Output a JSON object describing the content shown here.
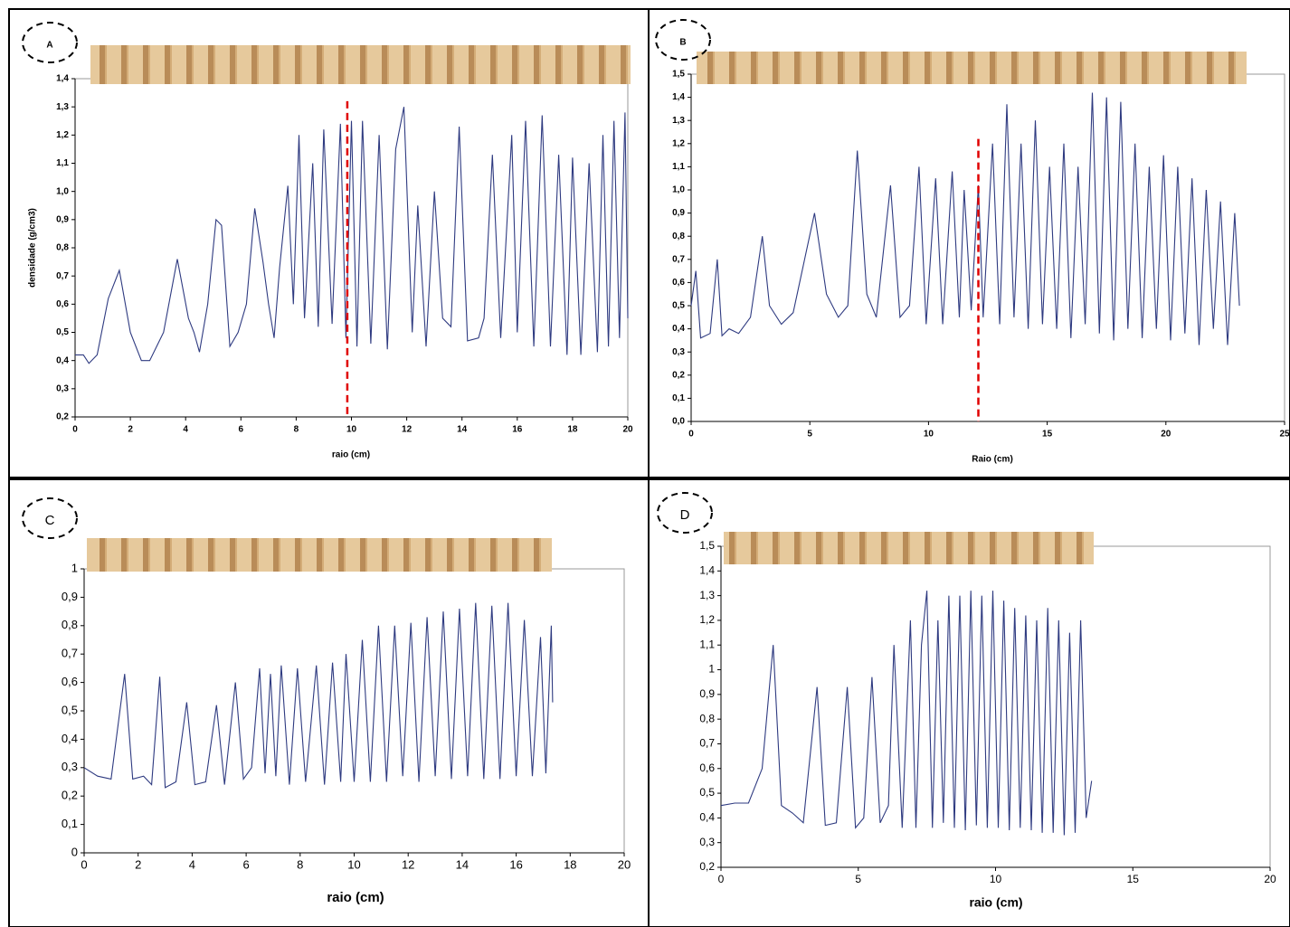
{
  "chart_data": [
    {
      "type": "line",
      "panel_label": "A",
      "xlabel": "raio (cm)",
      "ylabel": "densidade (g/cm3)",
      "color": "#2e3a80",
      "x": [
        0,
        0.3,
        0.5,
        0.8,
        1.2,
        1.6,
        2.0,
        2.4,
        2.7,
        3.2,
        3.7,
        4.1,
        4.3,
        4.5,
        4.8,
        5.1,
        5.3,
        5.6,
        5.9,
        6.2,
        6.5,
        6.8,
        7.0,
        7.2,
        7.4,
        7.7,
        7.9,
        8.1,
        8.3,
        8.6,
        8.8,
        9.0,
        9.3,
        9.6,
        9.8,
        10.0,
        10.2,
        10.4,
        10.7,
        11.0,
        11.3,
        11.6,
        11.9,
        12.2,
        12.4,
        12.7,
        13.0,
        13.3,
        13.6,
        13.9,
        14.2,
        14.6,
        14.8,
        15.1,
        15.4,
        15.8,
        16.0,
        16.3,
        16.6,
        16.9,
        17.2,
        17.5,
        17.8,
        18.0,
        18.3,
        18.6,
        18.9,
        19.1,
        19.3,
        19.5,
        19.7,
        19.9,
        20.0
      ],
      "values": [
        0.42,
        0.42,
        0.39,
        0.42,
        0.62,
        0.72,
        0.5,
        0.4,
        0.4,
        0.5,
        0.76,
        0.55,
        0.5,
        0.43,
        0.6,
        0.9,
        0.88,
        0.45,
        0.5,
        0.6,
        0.94,
        0.75,
        0.6,
        0.48,
        0.73,
        1.02,
        0.6,
        1.2,
        0.55,
        1.1,
        0.52,
        1.22,
        0.53,
        1.24,
        0.48,
        1.25,
        0.45,
        1.25,
        0.46,
        1.2,
        0.44,
        1.15,
        1.3,
        0.5,
        0.95,
        0.45,
        1.0,
        0.55,
        0.52,
        1.23,
        0.47,
        0.48,
        0.55,
        1.13,
        0.48,
        1.2,
        0.5,
        1.25,
        0.45,
        1.27,
        0.45,
        1.13,
        0.42,
        1.12,
        0.42,
        1.1,
        0.43,
        1.2,
        0.45,
        1.25,
        0.48,
        1.28,
        0.55
      ],
      "xlim": [
        0,
        20
      ],
      "ylim": [
        0.2,
        1.4
      ],
      "xticks": [
        0,
        2,
        4,
        6,
        8,
        10,
        12,
        14,
        16,
        18,
        20
      ],
      "yticks": [
        {
          "value": 0.2,
          "label": "0,2"
        },
        {
          "value": 0.3,
          "label": "0,3"
        },
        {
          "value": 0.4,
          "label": "0,4"
        },
        {
          "value": 0.5,
          "label": "0,5"
        },
        {
          "value": 0.6,
          "label": "0,6"
        },
        {
          "value": 0.7,
          "label": "0,7"
        },
        {
          "value": 0.8,
          "label": "0,8"
        },
        {
          "value": 0.9,
          "label": "0,9"
        },
        {
          "value": 1.0,
          "label": "1,0"
        },
        {
          "value": 1.1,
          "label": "1,1"
        },
        {
          "value": 1.2,
          "label": "1,2"
        },
        {
          "value": 1.3,
          "label": "1,3"
        },
        {
          "value": 1.4,
          "label": "1,4"
        }
      ],
      "vline": {
        "x": 9.85,
        "top": 1.32,
        "color": "#e00000"
      }
    },
    {
      "type": "line",
      "panel_label": "B",
      "xlabel": "Raio (cm)",
      "color": "#2e3a80",
      "x": [
        0,
        0.2,
        0.4,
        0.8,
        1.1,
        1.3,
        1.6,
        2.0,
        2.5,
        3.0,
        3.3,
        3.8,
        4.3,
        5.2,
        5.7,
        6.2,
        6.6,
        7.0,
        7.4,
        7.8,
        8.4,
        8.8,
        9.2,
        9.6,
        9.9,
        10.3,
        10.6,
        11.0,
        11.3,
        11.5,
        11.8,
        12.1,
        12.3,
        12.7,
        13.0,
        13.3,
        13.6,
        13.9,
        14.2,
        14.5,
        14.8,
        15.1,
        15.4,
        15.7,
        16.0,
        16.3,
        16.6,
        16.9,
        17.2,
        17.5,
        17.8,
        18.1,
        18.4,
        18.7,
        19.0,
        19.3,
        19.6,
        19.9,
        20.2,
        20.5,
        20.8,
        21.1,
        21.4,
        21.7,
        22.0,
        22.3,
        22.6,
        22.9,
        23.1
      ],
      "values": [
        0.5,
        0.65,
        0.36,
        0.38,
        0.7,
        0.37,
        0.4,
        0.38,
        0.45,
        0.8,
        0.5,
        0.42,
        0.47,
        0.9,
        0.55,
        0.45,
        0.5,
        1.17,
        0.55,
        0.45,
        1.02,
        0.45,
        0.5,
        1.1,
        0.42,
        1.05,
        0.42,
        1.08,
        0.45,
        1.0,
        0.48,
        1.02,
        0.45,
        1.2,
        0.42,
        1.37,
        0.45,
        1.2,
        0.4,
        1.3,
        0.42,
        1.1,
        0.4,
        1.2,
        0.36,
        1.1,
        0.42,
        1.42,
        0.38,
        1.4,
        0.35,
        1.38,
        0.4,
        1.2,
        0.36,
        1.1,
        0.4,
        1.15,
        0.35,
        1.1,
        0.38,
        1.05,
        0.33,
        1.0,
        0.4,
        0.95,
        0.33,
        0.9,
        0.5
      ],
      "xlim": [
        0,
        25
      ],
      "ylim": [
        0,
        1.5
      ],
      "xticks": [
        0,
        5,
        10,
        15,
        20,
        25
      ],
      "yticks": [
        {
          "value": 0,
          "label": "0,0"
        },
        {
          "value": 0.1,
          "label": "0,1"
        },
        {
          "value": 0.2,
          "label": "0,2"
        },
        {
          "value": 0.3,
          "label": "0,3"
        },
        {
          "value": 0.4,
          "label": "0,4"
        },
        {
          "value": 0.5,
          "label": "0,5"
        },
        {
          "value": 0.6,
          "label": "0,6"
        },
        {
          "value": 0.7,
          "label": "0,7"
        },
        {
          "value": 0.8,
          "label": "0,8"
        },
        {
          "value": 0.9,
          "label": "0,9"
        },
        {
          "value": 1.0,
          "label": "1,0"
        },
        {
          "value": 1.1,
          "label": "1,1"
        },
        {
          "value": 1.2,
          "label": "1,2"
        },
        {
          "value": 1.3,
          "label": "1,3"
        },
        {
          "value": 1.4,
          "label": "1,4"
        },
        {
          "value": 1.5,
          "label": "1,5"
        }
      ],
      "vline": {
        "x": 12.1,
        "top": 1.22,
        "color": "#e00000"
      }
    },
    {
      "type": "line",
      "panel_label": "C",
      "xlabel": "raio (cm)",
      "color": "#2e3a80",
      "x": [
        0,
        0.5,
        1.0,
        1.5,
        1.8,
        2.2,
        2.5,
        2.8,
        3.0,
        3.4,
        3.8,
        4.1,
        4.5,
        4.9,
        5.2,
        5.6,
        5.9,
        6.2,
        6.5,
        6.7,
        6.9,
        7.1,
        7.3,
        7.6,
        7.9,
        8.2,
        8.6,
        8.9,
        9.2,
        9.5,
        9.7,
        10.0,
        10.3,
        10.6,
        10.9,
        11.2,
        11.5,
        11.8,
        12.1,
        12.4,
        12.7,
        13.0,
        13.3,
        13.6,
        13.9,
        14.2,
        14.5,
        14.8,
        15.1,
        15.4,
        15.7,
        16.0,
        16.3,
        16.6,
        16.9,
        17.1,
        17.3,
        17.35
      ],
      "values": [
        0.3,
        0.27,
        0.26,
        0.63,
        0.26,
        0.27,
        0.24,
        0.62,
        0.23,
        0.25,
        0.53,
        0.24,
        0.25,
        0.52,
        0.24,
        0.6,
        0.26,
        0.3,
        0.65,
        0.28,
        0.63,
        0.27,
        0.66,
        0.24,
        0.65,
        0.25,
        0.66,
        0.24,
        0.67,
        0.25,
        0.7,
        0.25,
        0.75,
        0.25,
        0.8,
        0.25,
        0.8,
        0.27,
        0.81,
        0.25,
        0.83,
        0.27,
        0.85,
        0.26,
        0.86,
        0.27,
        0.88,
        0.26,
        0.87,
        0.26,
        0.88,
        0.27,
        0.82,
        0.27,
        0.76,
        0.28,
        0.8,
        0.53
      ],
      "xlim": [
        0,
        20
      ],
      "ylim": [
        0,
        1
      ],
      "xticks": [
        0,
        2,
        4,
        6,
        8,
        10,
        12,
        14,
        16,
        18,
        20
      ],
      "yticks": [
        0,
        {
          "value": 0.1,
          "label": "0,1"
        },
        {
          "value": 0.2,
          "label": "0,2"
        },
        {
          "value": 0.3,
          "label": "0,3"
        },
        {
          "value": 0.4,
          "label": "0,4"
        },
        {
          "value": 0.5,
          "label": "0,5"
        },
        {
          "value": 0.6,
          "label": "0,6"
        },
        {
          "value": 0.7,
          "label": "0,7"
        },
        {
          "value": 0.8,
          "label": "0,8"
        },
        {
          "value": 0.9,
          "label": "0,9"
        },
        1
      ]
    },
    {
      "type": "line",
      "panel_label": "D",
      "xlabel": "raio (cm)",
      "color": "#2e3a80",
      "x": [
        0,
        0.5,
        1.0,
        1.5,
        1.9,
        2.2,
        2.6,
        3.0,
        3.5,
        3.8,
        4.2,
        4.6,
        4.9,
        5.2,
        5.5,
        5.8,
        6.1,
        6.3,
        6.6,
        6.9,
        7.1,
        7.3,
        7.5,
        7.7,
        7.9,
        8.1,
        8.3,
        8.5,
        8.7,
        8.9,
        9.1,
        9.3,
        9.5,
        9.7,
        9.9,
        10.1,
        10.3,
        10.5,
        10.7,
        10.9,
        11.1,
        11.3,
        11.5,
        11.7,
        11.9,
        12.1,
        12.3,
        12.5,
        12.7,
        12.9,
        13.1,
        13.3,
        13.5
      ],
      "values": [
        0.45,
        0.46,
        0.46,
        0.6,
        1.1,
        0.45,
        0.42,
        0.38,
        0.93,
        0.37,
        0.38,
        0.93,
        0.36,
        0.4,
        0.97,
        0.38,
        0.45,
        1.1,
        0.36,
        1.2,
        0.36,
        1.1,
        1.32,
        0.36,
        1.2,
        0.38,
        1.3,
        0.36,
        1.3,
        0.35,
        1.32,
        0.37,
        1.3,
        0.36,
        1.32,
        0.36,
        1.28,
        0.35,
        1.25,
        0.36,
        1.22,
        0.35,
        1.2,
        0.34,
        1.25,
        0.34,
        1.2,
        0.33,
        1.15,
        0.34,
        1.2,
        0.4,
        0.55
      ],
      "xlim": [
        0,
        20
      ],
      "ylim": [
        0.2,
        1.5
      ],
      "xticks": [
        0,
        5,
        10,
        15,
        20
      ],
      "yticks": [
        {
          "value": 0.2,
          "label": "0,2"
        },
        {
          "value": 0.3,
          "label": "0,3"
        },
        {
          "value": 0.4,
          "label": "0,4"
        },
        {
          "value": 0.5,
          "label": "0,5"
        },
        {
          "value": 0.6,
          "label": "0,6"
        },
        {
          "value": 0.7,
          "label": "0,7"
        },
        {
          "value": 0.8,
          "label": "0,8"
        },
        {
          "value": 0.9,
          "label": "0,9"
        },
        1,
        {
          "value": 1.1,
          "label": "1,1"
        },
        {
          "value": 1.2,
          "label": "1,2"
        },
        {
          "value": 1.3,
          "label": "1,3"
        },
        {
          "value": 1.4,
          "label": "1,4"
        },
        {
          "value": 1.5,
          "label": "1,5"
        }
      ]
    }
  ]
}
